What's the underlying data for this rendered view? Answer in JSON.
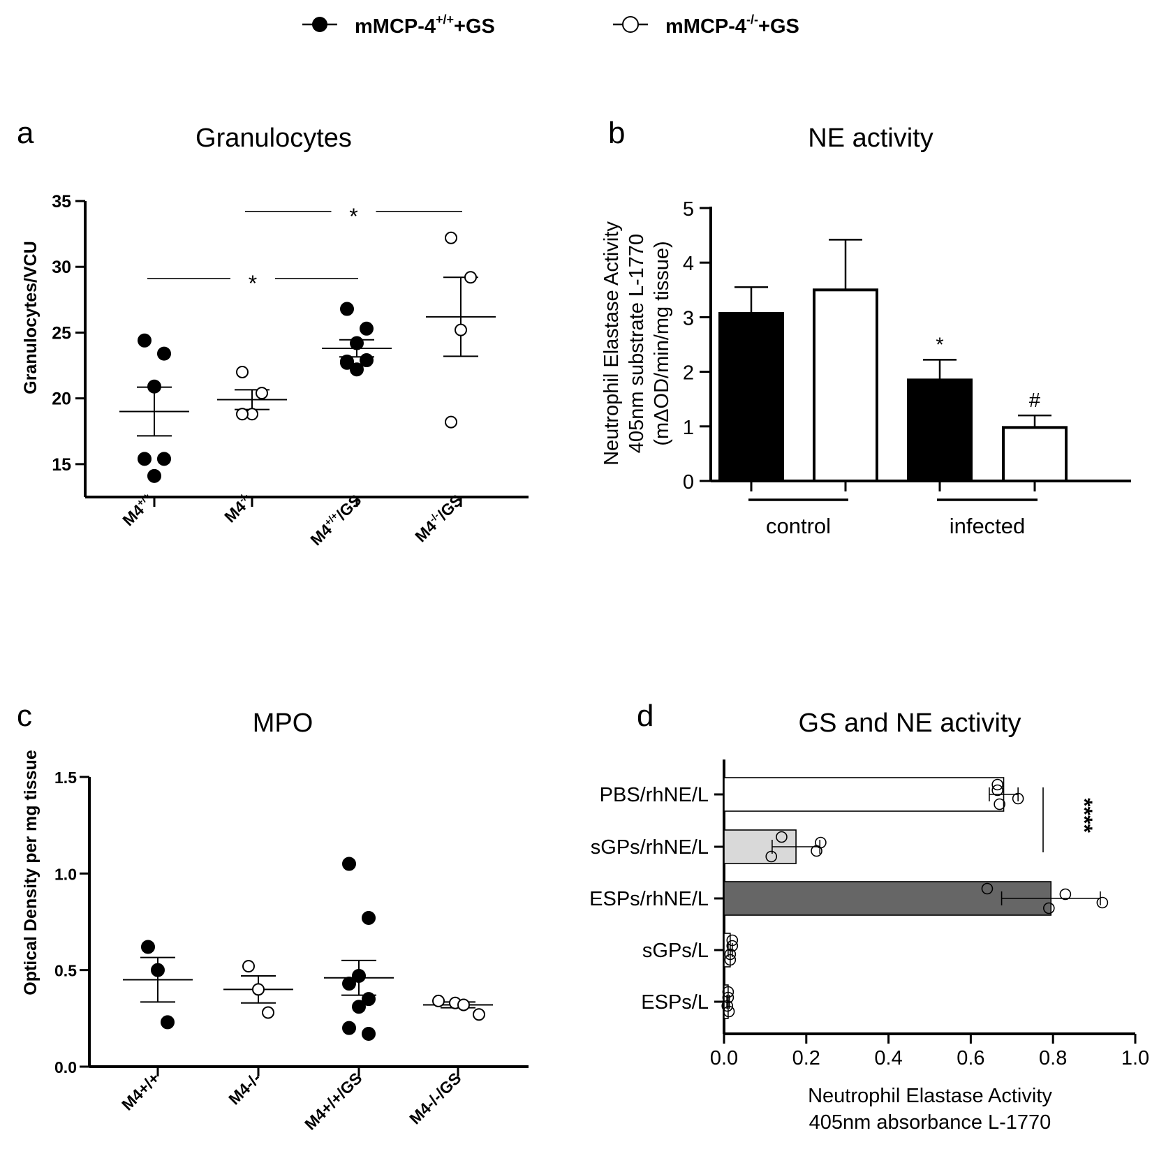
{
  "legend": {
    "items": [
      {
        "base": "mMCP-4",
        "sup": "+/+",
        "suffix": "+GS",
        "marker": "filled"
      },
      {
        "base": "mMCP-4",
        "sup": "-/-",
        "suffix": "+GS",
        "marker": "open"
      }
    ]
  },
  "chart_data": [
    {
      "panel": "a",
      "type": "scatter",
      "title": "Granulocytes",
      "xlabel": "",
      "ylabel": "Granulocytes/VCU",
      "ylim": [
        12.5,
        35
      ],
      "yticks": [
        15,
        20,
        25,
        30,
        35
      ],
      "categories": [
        {
          "base": "M4",
          "sup": "+/+",
          "suffix": ""
        },
        {
          "base": "M4",
          "sup": "-/-",
          "suffix": ""
        },
        {
          "base": "M4",
          "sup": "+/+",
          "suffix": "/GS"
        },
        {
          "base": "M4",
          "sup": "-/-",
          "suffix": "/GS"
        }
      ],
      "series": [
        {
          "name": "M4+/+",
          "marker": "filled",
          "points": [
            24.4,
            23.4,
            20.9,
            15.4,
            15.4,
            14.1
          ],
          "mean": 19.0,
          "sem": 1.85
        },
        {
          "name": "M4-/-",
          "marker": "open",
          "points": [
            22.0,
            20.4,
            18.8,
            18.8
          ],
          "mean": 19.9,
          "sem": 0.75
        },
        {
          "name": "M4+/+/GS",
          "marker": "filled",
          "points": [
            26.8,
            25.3,
            24.2,
            22.7,
            22.9,
            22.2,
            22.8
          ],
          "mean": 23.8,
          "sem": 0.65
        },
        {
          "name": "M4-/-/GS",
          "marker": "open",
          "points": [
            32.2,
            29.2,
            25.2,
            18.2
          ],
          "mean": 26.2,
          "sem": 3.0
        }
      ],
      "significance": [
        {
          "from": 0,
          "to": 2,
          "label": "*",
          "level": 29.1
        },
        {
          "from": 1,
          "to": 3,
          "label": "*",
          "level": 34.2
        }
      ]
    },
    {
      "panel": "b",
      "type": "bar",
      "title": "NE activity",
      "ylabel_lines": [
        "Neutrophil Elastase Activity",
        "405nm substrate L-1770",
        "(mΔOD/min/mg tissue)"
      ],
      "ylim": [
        0,
        5
      ],
      "yticks": [
        0,
        1,
        2,
        3,
        4,
        5
      ],
      "groups": [
        "control",
        "infected"
      ],
      "bars": [
        {
          "group": "control",
          "fill": "filled",
          "value": 3.07,
          "err": 0.48,
          "annotation": ""
        },
        {
          "group": "control",
          "fill": "open",
          "value": 3.5,
          "err": 0.92,
          "annotation": ""
        },
        {
          "group": "infected",
          "fill": "filled",
          "value": 1.85,
          "err": 0.37,
          "annotation": "*"
        },
        {
          "group": "infected",
          "fill": "open",
          "value": 0.98,
          "err": 0.22,
          "annotation": "#"
        }
      ]
    },
    {
      "panel": "c",
      "type": "scatter",
      "title": "MPO",
      "ylabel": "Optical Density per mg tissue",
      "ylim": [
        0,
        1.5
      ],
      "yticks": [
        "0.0",
        "0.5",
        "1.0",
        "1.5"
      ],
      "categories": [
        "M4+/+",
        "M4-/-",
        "M4+/+/GS",
        "M4-/-/GS"
      ],
      "series": [
        {
          "name": "M4+/+",
          "marker": "filled",
          "points": [
            0.62,
            0.5,
            0.23
          ],
          "mean": 0.45,
          "sem": 0.115
        },
        {
          "name": "M4-/-",
          "marker": "open",
          "points": [
            0.52,
            0.4,
            0.28
          ],
          "mean": 0.4,
          "sem": 0.07
        },
        {
          "name": "M4+/+/GS",
          "marker": "filled",
          "points": [
            1.05,
            0.77,
            0.47,
            0.43,
            0.35,
            0.31,
            0.2,
            0.17
          ],
          "mean": 0.46,
          "sem": 0.09
        },
        {
          "name": "M4-/-/GS",
          "marker": "open",
          "points": [
            0.34,
            0.33,
            0.32,
            0.27
          ],
          "mean": 0.32,
          "sem": 0.015
        }
      ]
    },
    {
      "panel": "d",
      "type": "bar",
      "orientation": "horizontal",
      "title": "GS and NE activity",
      "xlabel_lines": [
        "Neutrophil Elastase Activity",
        "405nm absorbance L-1770"
      ],
      "xlim": [
        0,
        1.0
      ],
      "xticks": [
        "0.0",
        "0.2",
        "0.4",
        "0.6",
        "0.8",
        "1.0"
      ],
      "categories": [
        "PBS/rhNE/L",
        "sGPs/rhNE/L",
        "ESPs/rhNE/L",
        "sGPs/L",
        "ESPs/L"
      ],
      "bars": [
        {
          "label": "PBS/rhNE/L",
          "value": 0.68,
          "sd": 0.035,
          "color": "#ffffff",
          "points": [
            0.665,
            0.67,
            0.665,
            0.715
          ]
        },
        {
          "label": "sGPs/rhNE/L",
          "value": 0.175,
          "sd": 0.058,
          "color": "#d9d9d9",
          "points": [
            0.14,
            0.115,
            0.235,
            0.225
          ]
        },
        {
          "label": "ESPs/rhNE/L",
          "value": 0.795,
          "sd": 0.12,
          "color": "#666666",
          "points": [
            0.64,
            0.79,
            0.83,
            0.92
          ]
        },
        {
          "label": "sGPs/L",
          "value": 0.015,
          "sd": 0.005,
          "color": "#ffffff",
          "points": [
            0.02,
            0.015,
            0.02,
            0.015
          ]
        },
        {
          "label": "ESPs/L",
          "value": 0.01,
          "sd": 0.003,
          "color": "#ffffff",
          "points": [
            0.01,
            0.012,
            0.01,
            0.008
          ]
        }
      ],
      "significance": {
        "label": "****",
        "from": "PBS/rhNE/L",
        "to": "sGPs/rhNE/L"
      }
    }
  ],
  "panel_labels": [
    "a",
    "b",
    "c",
    "d"
  ]
}
